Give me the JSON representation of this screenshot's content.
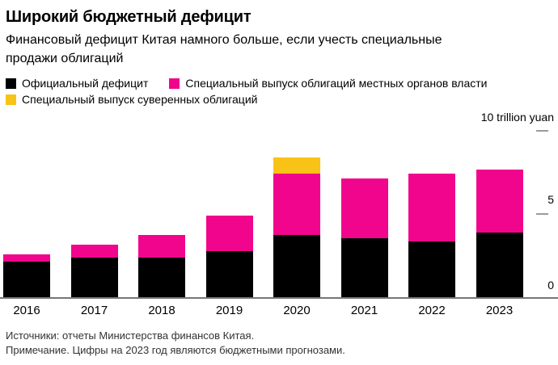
{
  "header": {
    "title": "Широкий бюджетный дефицит",
    "subtitle": "Финансовый дефицит Китая намного больше, если учесть специальные\nпродажи облигаций"
  },
  "legend": [
    {
      "label": "Официальный дефицит",
      "color": "#000000"
    },
    {
      "label": "Специальный выпуск облигаций местных органов власти",
      "color": "#f0058c"
    },
    {
      "label": "Специальный выпуск суверенных облигаций",
      "color": "#f9c216"
    }
  ],
  "chart_data": {
    "type": "bar",
    "stacked": true,
    "title": "Широкий бюджетный дефицит",
    "unit_label": "10 trillion yuan",
    "categories": [
      "2016",
      "2017",
      "2018",
      "2019",
      "2020",
      "2021",
      "2022",
      "2023"
    ],
    "series": [
      {
        "name": "Официальный дефицит",
        "color": "#000000",
        "values": [
          2.15,
          2.38,
          2.4,
          2.76,
          3.76,
          3.55,
          3.37,
          3.88
        ]
      },
      {
        "name": "Специальный выпуск облигаций местных органов власти",
        "color": "#f0058c",
        "values": [
          0.42,
          0.78,
          1.35,
          2.16,
          3.65,
          3.6,
          4.06,
          3.81
        ]
      },
      {
        "name": "Специальный выпуск суверенных облигаций",
        "color": "#f9c216",
        "values": [
          0,
          0,
          0,
          0,
          1.0,
          0,
          0,
          0
        ]
      }
    ],
    "yticks": [
      0,
      5,
      10
    ],
    "ylim": [
      0,
      10
    ],
    "grid": false,
    "legend_position": "top",
    "axis_side": "right"
  },
  "footer": {
    "sources": "Источники: отчеты Министерства финансов Китая.",
    "note": "Примечание. Цифры на 2023 год являются бюджетными прогнозами."
  }
}
